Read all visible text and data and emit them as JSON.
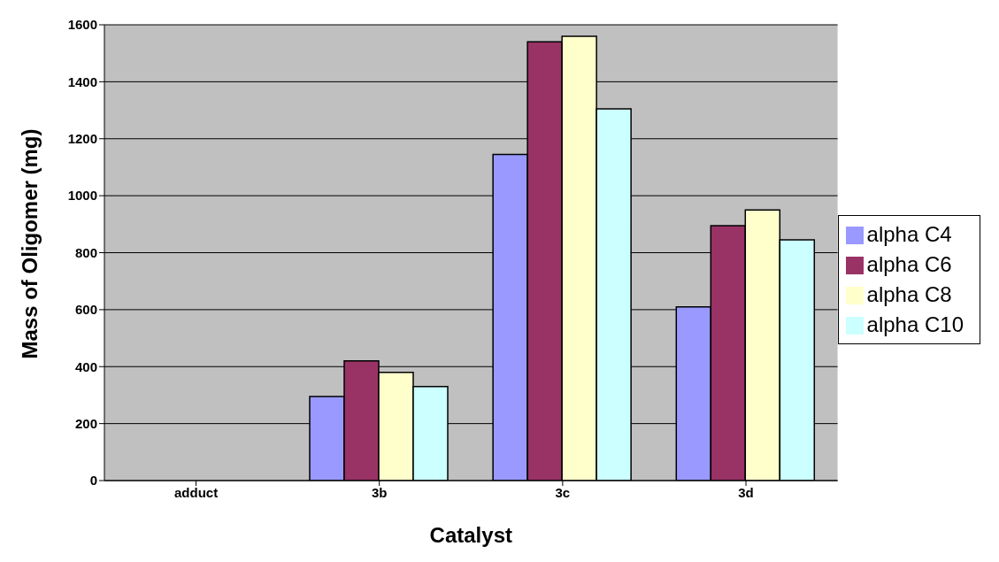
{
  "chart_data": {
    "type": "bar",
    "xlabel": "Catalyst",
    "ylabel": "Mass of Oligomer (mg)",
    "categories": [
      "adduct",
      "3b",
      "3c",
      "3d"
    ],
    "series": [
      {
        "name": "alpha C4",
        "color": "#9999ff",
        "values": [
          0,
          295,
          1145,
          610
        ]
      },
      {
        "name": "alpha C6",
        "color": "#993366",
        "values": [
          0,
          420,
          1540,
          895
        ]
      },
      {
        "name": "alpha C8",
        "color": "#ffffcc",
        "values": [
          0,
          380,
          1560,
          950
        ]
      },
      {
        "name": "alpha C10",
        "color": "#ccffff",
        "values": [
          0,
          330,
          1305,
          845
        ]
      }
    ],
    "ylim": [
      0,
      1600
    ],
    "yticks": [
      0,
      200,
      400,
      600,
      800,
      1000,
      1200,
      1400,
      1600
    ],
    "grid": "y",
    "legend": "right"
  }
}
